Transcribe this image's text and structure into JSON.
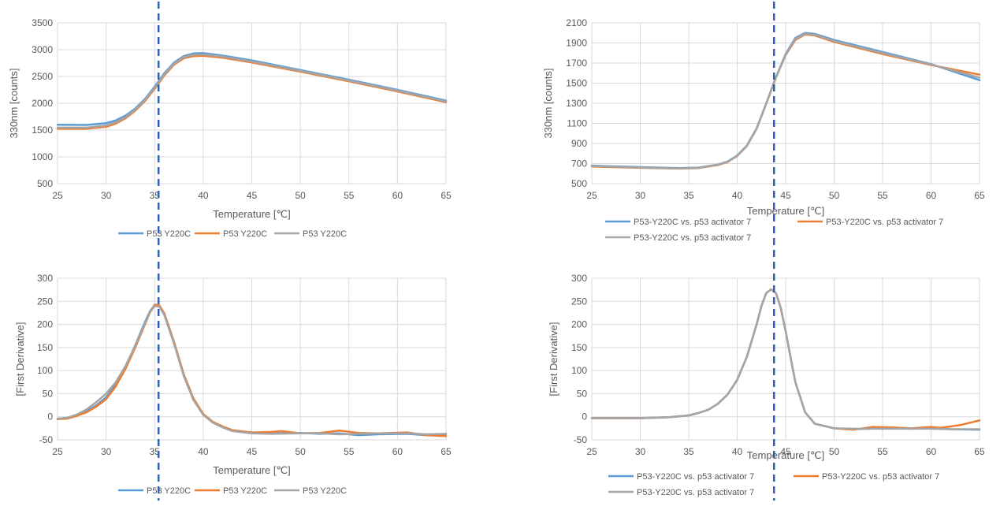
{
  "colors": {
    "blue": "#5b9bd5",
    "orange": "#ed7d31",
    "gray": "#a5a5a5",
    "marker": "#2f5fb3",
    "grid": "#d9d9d9",
    "text": "#595959"
  },
  "markers": [
    {
      "chart_index": 0,
      "x": 35.4
    },
    {
      "chart_index": 1,
      "x": 43.8
    }
  ],
  "chart_data": [
    {
      "type": "line",
      "title": "",
      "xlabel": "Temperature [℃]",
      "ylabel": "330nm [counts]",
      "xlim": [
        25,
        65
      ],
      "xticks": [
        25,
        30,
        35,
        40,
        45,
        50,
        55,
        60,
        65
      ],
      "ylim": [
        500,
        3500
      ],
      "yticks": [
        500,
        1000,
        1500,
        2000,
        2500,
        3000,
        3500
      ],
      "grid": true,
      "legend": "bottom",
      "series": [
        {
          "name": "P53 Y220C",
          "color": "#5b9bd5",
          "x": [
            25,
            28,
            30,
            31,
            32,
            33,
            34,
            35,
            36,
            37,
            38,
            39,
            40,
            42,
            45,
            50,
            55,
            60,
            65
          ],
          "y": [
            1600,
            1595,
            1630,
            1680,
            1770,
            1900,
            2080,
            2310,
            2560,
            2760,
            2880,
            2930,
            2935,
            2890,
            2800,
            2620,
            2440,
            2250,
            2050
          ]
        },
        {
          "name": "P53 Y220C",
          "color": "#ed7d31",
          "x": [
            25,
            28,
            30,
            31,
            32,
            33,
            34,
            35,
            36,
            37,
            38,
            39,
            40,
            42,
            45,
            50,
            55,
            60,
            65
          ],
          "y": [
            1525,
            1525,
            1560,
            1620,
            1720,
            1860,
            2040,
            2270,
            2520,
            2720,
            2840,
            2880,
            2885,
            2850,
            2760,
            2590,
            2410,
            2220,
            2020
          ]
        },
        {
          "name": "P53 Y220C",
          "color": "#a5a5a5",
          "x": [
            25,
            28,
            30,
            31,
            32,
            33,
            34,
            35,
            36,
            37,
            38,
            39,
            40,
            42,
            45,
            50,
            55,
            60,
            65
          ],
          "y": [
            1545,
            1545,
            1585,
            1645,
            1740,
            1880,
            2060,
            2290,
            2540,
            2740,
            2860,
            2905,
            2910,
            2870,
            2780,
            2605,
            2425,
            2235,
            2035
          ]
        }
      ]
    },
    {
      "type": "line",
      "title": "",
      "xlabel": "Temperature [℃]",
      "ylabel": "330nm [counts]",
      "xlim": [
        25,
        65
      ],
      "xticks": [
        25,
        30,
        35,
        40,
        45,
        50,
        55,
        60,
        65
      ],
      "ylim": [
        500,
        2100
      ],
      "yticks": [
        500,
        700,
        900,
        1100,
        1300,
        1500,
        1700,
        1900,
        2100
      ],
      "grid": true,
      "legend": "bottom",
      "series": [
        {
          "name": "P53-Y220C vs. p53 activator 7",
          "color": "#5b9bd5",
          "x": [
            25,
            30,
            34,
            36,
            38,
            39,
            40,
            41,
            42,
            43,
            44,
            45,
            46,
            47,
            48,
            50,
            55,
            60,
            65
          ],
          "y": [
            680,
            665,
            655,
            660,
            690,
            720,
            780,
            880,
            1050,
            1300,
            1560,
            1790,
            1950,
            2000,
            1990,
            1930,
            1810,
            1690,
            1530
          ]
        },
        {
          "name": "P53-Y220C vs. p53 activator 7",
          "color": "#ed7d31",
          "x": [
            25,
            30,
            34,
            36,
            38,
            39,
            40,
            41,
            42,
            43,
            44,
            45,
            46,
            47,
            48,
            50,
            55,
            60,
            65
          ],
          "y": [
            670,
            658,
            650,
            655,
            685,
            715,
            775,
            875,
            1045,
            1295,
            1555,
            1780,
            1930,
            1985,
            1975,
            1910,
            1790,
            1680,
            1585
          ]
        },
        {
          "name": "P53-Y220C vs. p53 activator 7",
          "color": "#a5a5a5",
          "x": [
            25,
            30,
            34,
            36,
            38,
            39,
            40,
            41,
            42,
            43,
            44,
            45,
            46,
            47,
            48,
            50,
            55,
            60,
            65
          ],
          "y": [
            675,
            661,
            652,
            658,
            688,
            718,
            778,
            878,
            1048,
            1298,
            1558,
            1785,
            1940,
            1992,
            1983,
            1920,
            1800,
            1685,
            1555
          ]
        }
      ]
    },
    {
      "type": "line",
      "title": "",
      "xlabel": "Temperature [℃]",
      "ylabel": "[First Derivative]",
      "xlim": [
        25,
        65
      ],
      "xticks": [
        25,
        30,
        35,
        40,
        45,
        50,
        55,
        60,
        65
      ],
      "ylim": [
        -50,
        300
      ],
      "yticks": [
        -50,
        0,
        50,
        100,
        150,
        200,
        250,
        300
      ],
      "grid": true,
      "legend": "bottom",
      "series": [
        {
          "name": "P53 Y220C",
          "color": "#5b9bd5",
          "x": [
            25,
            26,
            27,
            28,
            29,
            30,
            31,
            32,
            33,
            34,
            34.5,
            35,
            35.5,
            36,
            37,
            38,
            39,
            40,
            41,
            42,
            43,
            45,
            47,
            50,
            52,
            54,
            56,
            58,
            61,
            63,
            65
          ],
          "y": [
            -5,
            -3,
            3,
            12,
            25,
            42,
            70,
            108,
            155,
            205,
            228,
            242,
            240,
            222,
            160,
            90,
            38,
            5,
            -12,
            -22,
            -30,
            -35,
            -36,
            -35,
            -37,
            -36,
            -40,
            -38,
            -37,
            -40,
            -38
          ]
        },
        {
          "name": "P53 Y220C",
          "color": "#ed7d31",
          "x": [
            25,
            26,
            27,
            28,
            29,
            30,
            31,
            32,
            33,
            34,
            34.5,
            35,
            35.5,
            36,
            37,
            38,
            39,
            40,
            41,
            42,
            43,
            45,
            47,
            48,
            50,
            52,
            54,
            56,
            58,
            61,
            63,
            65
          ],
          "y": [
            -5,
            -4,
            2,
            10,
            22,
            38,
            66,
            104,
            150,
            200,
            225,
            243,
            241,
            224,
            162,
            92,
            40,
            6,
            -11,
            -21,
            -29,
            -34,
            -33,
            -31,
            -36,
            -35,
            -30,
            -35,
            -36,
            -34,
            -40,
            -42
          ]
        },
        {
          "name": "P53 Y220C",
          "color": "#a5a5a5",
          "x": [
            25,
            26,
            27,
            28,
            29,
            30,
            31,
            32,
            33,
            34,
            34.5,
            35,
            35.5,
            36,
            37,
            38,
            39,
            40,
            41,
            42,
            43,
            45,
            47,
            50,
            52,
            54,
            56,
            58,
            61,
            63,
            65
          ],
          "y": [
            -4,
            -2,
            5,
            16,
            32,
            50,
            75,
            110,
            154,
            202,
            226,
            240,
            238,
            220,
            158,
            88,
            36,
            4,
            -13,
            -23,
            -31,
            -36,
            -37,
            -36,
            -36,
            -38,
            -37,
            -36,
            -36,
            -38,
            -37
          ]
        }
      ]
    },
    {
      "type": "line",
      "title": "",
      "xlabel": "Temperature [℃]",
      "ylabel": "[First Derivative]",
      "xlim": [
        25,
        65
      ],
      "xticks": [
        25,
        30,
        35,
        40,
        45,
        50,
        55,
        60,
        65
      ],
      "ylim": [
        -50,
        300
      ],
      "yticks": [
        -50,
        0,
        50,
        100,
        150,
        200,
        250,
        300
      ],
      "grid": true,
      "legend": "bottom",
      "series": [
        {
          "name": "P53-Y220C vs. p53 activator 7",
          "color": "#5b9bd5",
          "x": [
            25,
            30,
            33,
            35,
            36,
            37,
            38,
            39,
            40,
            41,
            42,
            42.5,
            43,
            43.5,
            44,
            44.5,
            45,
            45.5,
            46,
            47,
            48,
            50,
            52,
            55,
            58,
            60,
            62,
            65
          ],
          "y": [
            -3,
            -3,
            -1,
            3,
            8,
            15,
            28,
            48,
            80,
            130,
            200,
            240,
            268,
            276,
            268,
            235,
            185,
            130,
            75,
            10,
            -15,
            -25,
            -27,
            -25,
            -26,
            -25,
            -27,
            -28
          ]
        },
        {
          "name": "P53-Y220C vs. p53 activator 7",
          "color": "#ed7d31",
          "x": [
            25,
            30,
            33,
            35,
            36,
            37,
            38,
            39,
            40,
            41,
            42,
            42.5,
            43,
            43.5,
            44,
            44.5,
            45,
            45.5,
            46,
            47,
            48,
            50,
            52,
            54,
            56,
            58,
            60,
            61,
            63,
            65
          ],
          "y": [
            -3,
            -3,
            -1,
            3,
            8,
            15,
            28,
            48,
            80,
            130,
            200,
            240,
            268,
            276,
            268,
            235,
            185,
            130,
            75,
            10,
            -15,
            -25,
            -28,
            -22,
            -23,
            -25,
            -22,
            -24,
            -18,
            -8
          ]
        },
        {
          "name": "P53-Y220C vs. p53 activator 7",
          "color": "#a5a5a5",
          "x": [
            25,
            30,
            33,
            35,
            36,
            37,
            38,
            39,
            40,
            41,
            42,
            42.5,
            43,
            43.5,
            44,
            44.5,
            45,
            45.5,
            46,
            47,
            48,
            50,
            52,
            55,
            58,
            60,
            62,
            65
          ],
          "y": [
            -3,
            -3,
            -1,
            3,
            8,
            15,
            28,
            48,
            80,
            130,
            200,
            240,
            268,
            276,
            268,
            235,
            185,
            130,
            75,
            10,
            -15,
            -25,
            -26,
            -26,
            -26,
            -26,
            -27,
            -27
          ]
        }
      ]
    }
  ]
}
